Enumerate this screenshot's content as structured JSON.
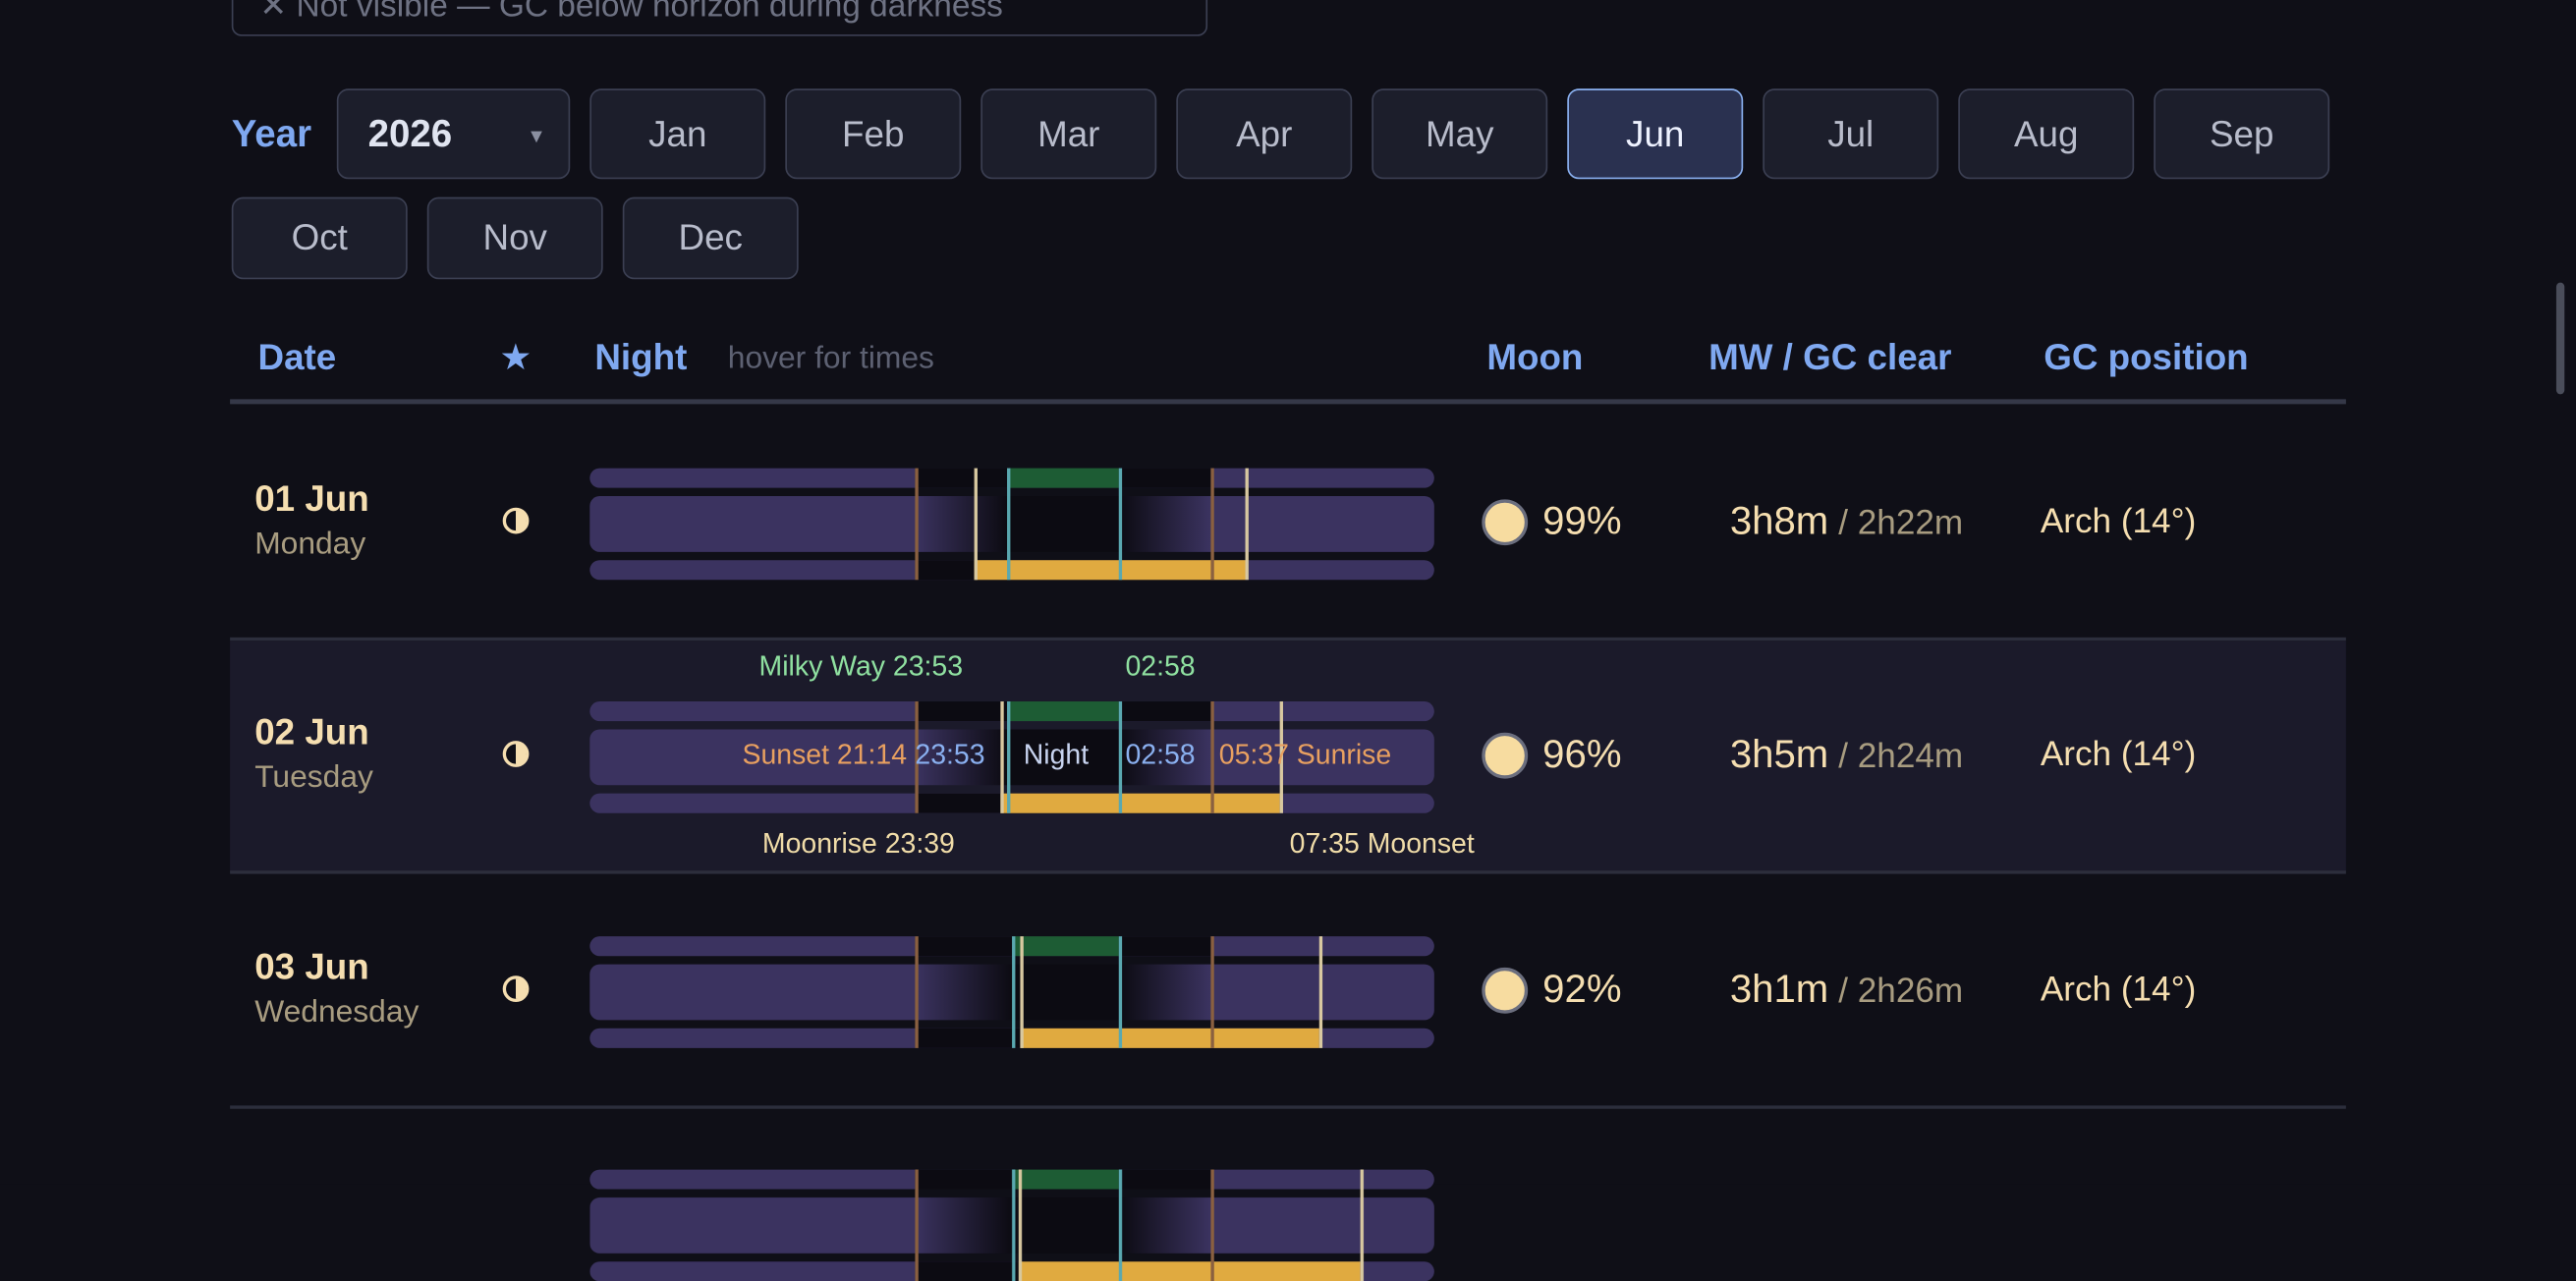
{
  "notice": "✕ Not visible — GC below horizon during darkness",
  "year_label": "Year",
  "year": "2026",
  "select_arrow": "▾",
  "months": [
    "Jan",
    "Feb",
    "Mar",
    "Apr",
    "May",
    "Jun",
    "Jul",
    "Aug",
    "Sep",
    "Oct",
    "Nov",
    "Dec"
  ],
  "active_month": "Jun",
  "header": {
    "date": "Date",
    "star": "★",
    "night": "Night",
    "night_hint": "hover for times",
    "moon": "Moon",
    "clear": "MW / GC clear",
    "position": "GC position"
  },
  "rows": [
    {
      "date": "01 Jun",
      "weekday": "Monday",
      "moon": "99%",
      "mw": "3h8m",
      "gc": "/ 2h22m",
      "position": "Arch (14°)"
    },
    {
      "date": "02 Jun",
      "weekday": "Tuesday",
      "moon": "96%",
      "mw": "3h5m",
      "gc": "/ 2h24m",
      "position": "Arch (14°)",
      "tooltip": {
        "milky_way": "Milky Way 23:53",
        "milky_way_end": "02:58",
        "sunset": "Sunset 21:14",
        "night_start": "23:53",
        "night": "Night",
        "night_end": "02:58",
        "sunrise": "05:37 Sunrise",
        "moonrise": "Moonrise 23:39",
        "moonset": "07:35 Moonset"
      }
    },
    {
      "date": "03 Jun",
      "weekday": "Wednesday",
      "moon": "92%",
      "mw": "3h1m",
      "gc": "/ 2h26m",
      "position": "Arch (14°)"
    }
  ]
}
